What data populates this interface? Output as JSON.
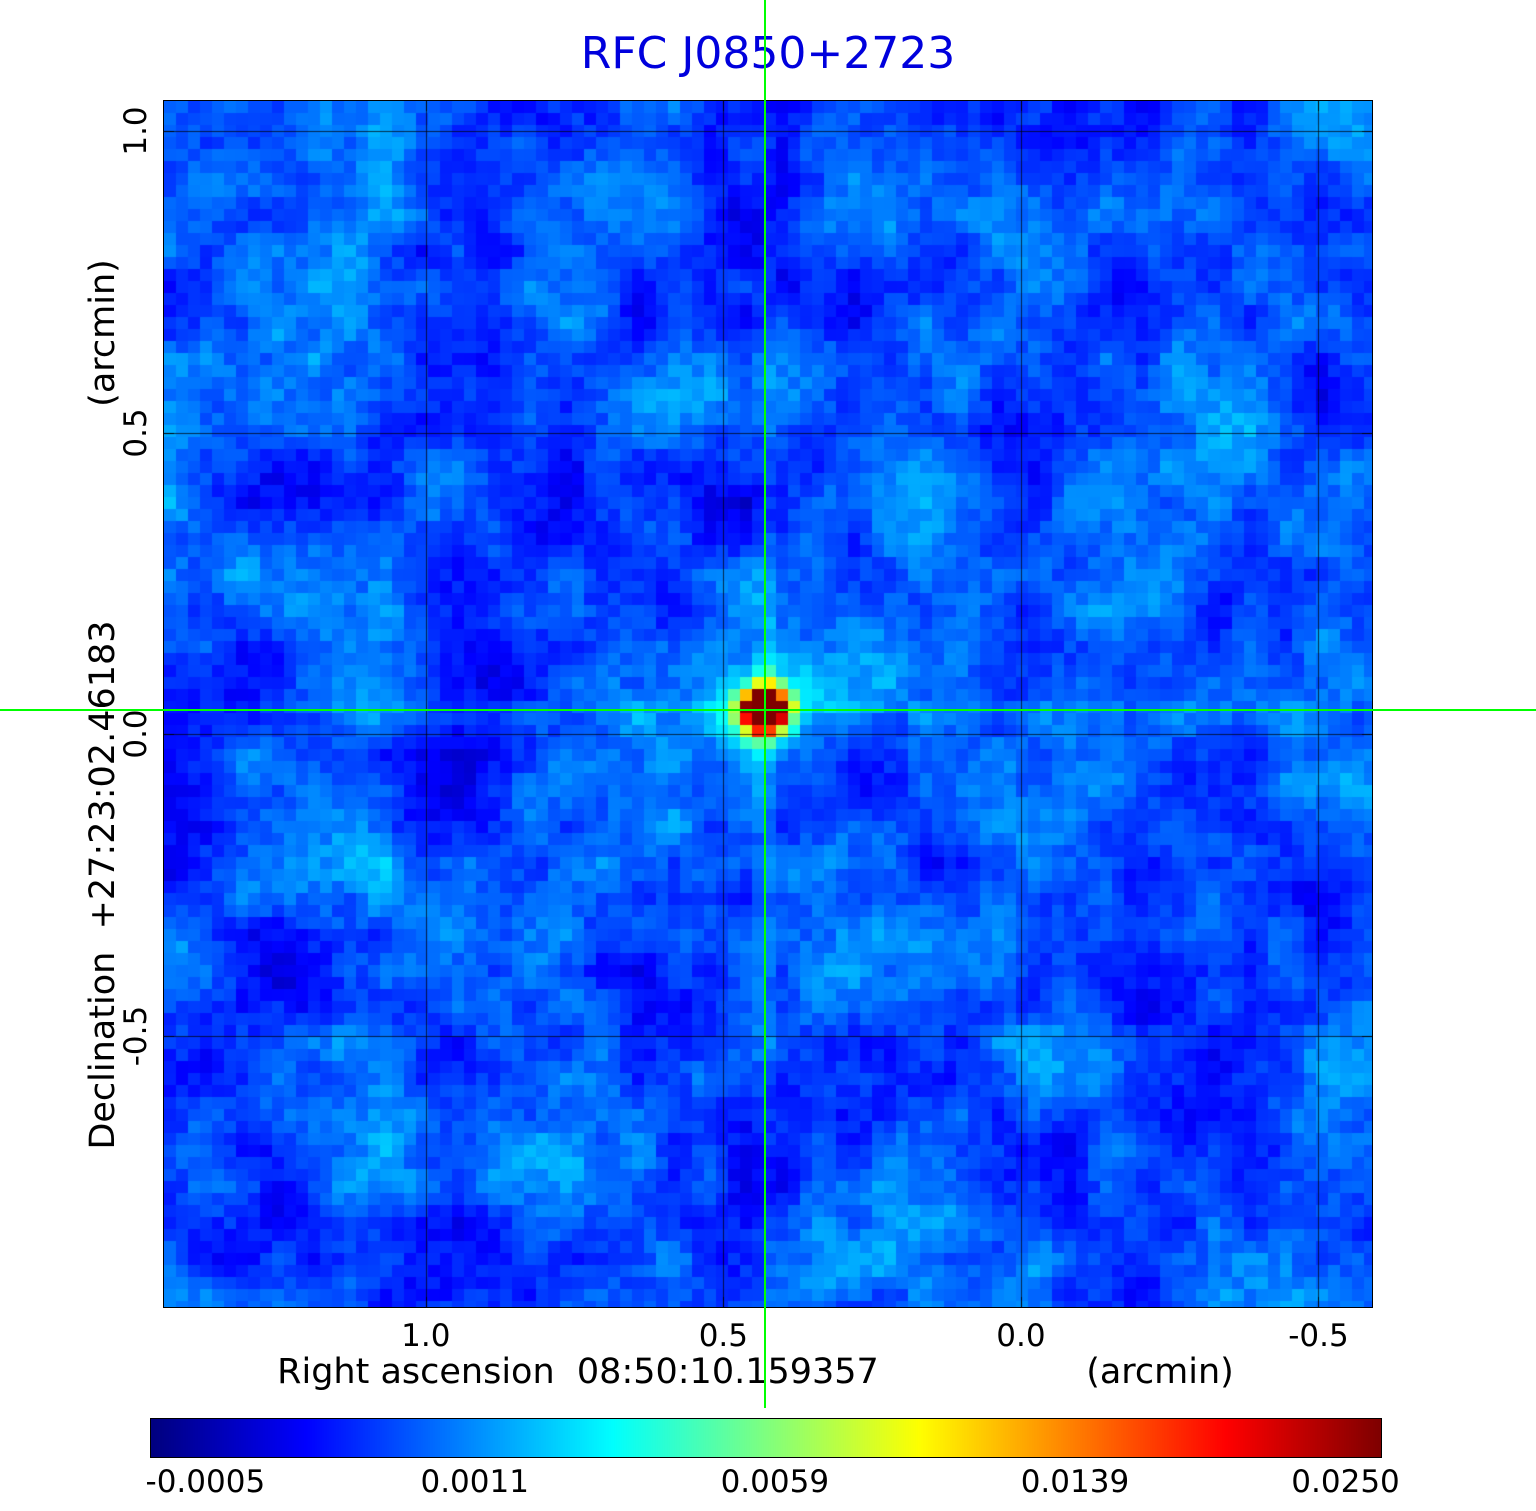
{
  "title": "RFC J0850+2723",
  "title_color": "#0000dd",
  "axes": {
    "x_label": "Right ascension  08:50:10.159357",
    "x_unit": "(arcmin)",
    "y_label": "Declination  +27:23:02.46183",
    "y_unit": "(arcmin)",
    "x_ticks": [
      "1.0",
      "0.5",
      "0.0",
      "-0.5"
    ],
    "y_ticks": [
      "1.0",
      "0.5",
      "0.0",
      "-0.5"
    ]
  },
  "colorbar": {
    "tick_labels": [
      "-0.0005",
      "0.0011",
      "0.0059",
      "0.0139",
      "0.0250"
    ]
  },
  "chart_data": {
    "type": "heatmap",
    "title": "RFC J0850+2723",
    "xlabel": "Right ascension 08:50:10.159357 (arcmin)",
    "ylabel": "Declination +27:23:02.46183 (arcmin)",
    "x_range": [
      1.44,
      -0.59
    ],
    "y_range": [
      1.05,
      -0.95
    ],
    "x_tick_values": [
      1.0,
      0.5,
      0.0,
      -0.5
    ],
    "y_tick_values": [
      1.0,
      0.5,
      0.0,
      -0.5
    ],
    "grid": true,
    "colormap": "jet",
    "scale": "nonlinear-stretch",
    "colorbar_values": [
      -0.0005,
      0.0011,
      0.0059,
      0.0139,
      0.025
    ],
    "colorbar_fractions": [
      0.045,
      0.264,
      0.508,
      0.752,
      0.972
    ],
    "source": {
      "x_arcmin": 0.43,
      "y_arcmin": 0.04,
      "peak_value": 0.025,
      "marker": "green-crosshair"
    },
    "noise_floor": -0.0005,
    "crosshair_color": "#00ff00",
    "seed": 1337
  }
}
